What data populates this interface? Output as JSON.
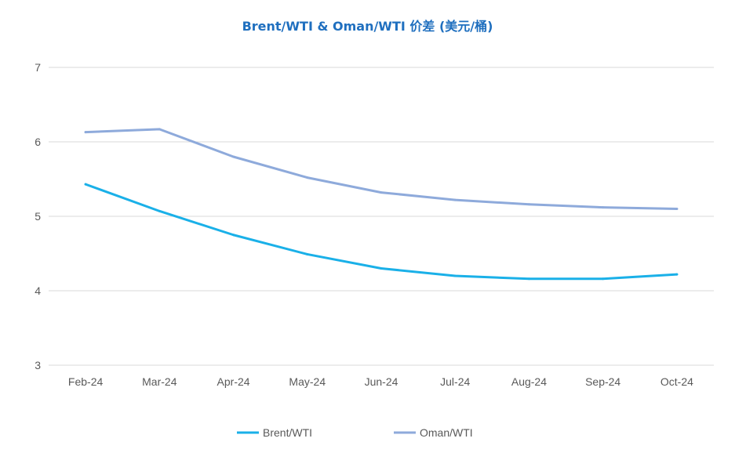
{
  "chart_data": {
    "type": "line",
    "title": "Brent/WTI & Oman/WTI 价差 (美元/桶)",
    "categories": [
      "Feb-24",
      "Mar-24",
      "Apr-24",
      "May-24",
      "Jun-24",
      "Jul-24",
      "Aug-24",
      "Sep-24",
      "Oct-24"
    ],
    "series": [
      {
        "name": "Brent/WTI",
        "color": "#1ab0e8",
        "values": [
          5.43,
          5.07,
          4.75,
          4.49,
          4.3,
          4.2,
          4.16,
          4.16,
          4.22
        ]
      },
      {
        "name": "Oman/WTI",
        "color": "#8eaadb",
        "values": [
          6.13,
          6.17,
          5.8,
          5.52,
          5.32,
          5.22,
          5.16,
          5.12,
          5.1
        ]
      }
    ],
    "ylim": [
      3,
      7
    ],
    "yticks": [
      3,
      4,
      5,
      6,
      7
    ],
    "grid": true,
    "legend_position": "bottom",
    "gridColor": "#d9d9d9"
  }
}
